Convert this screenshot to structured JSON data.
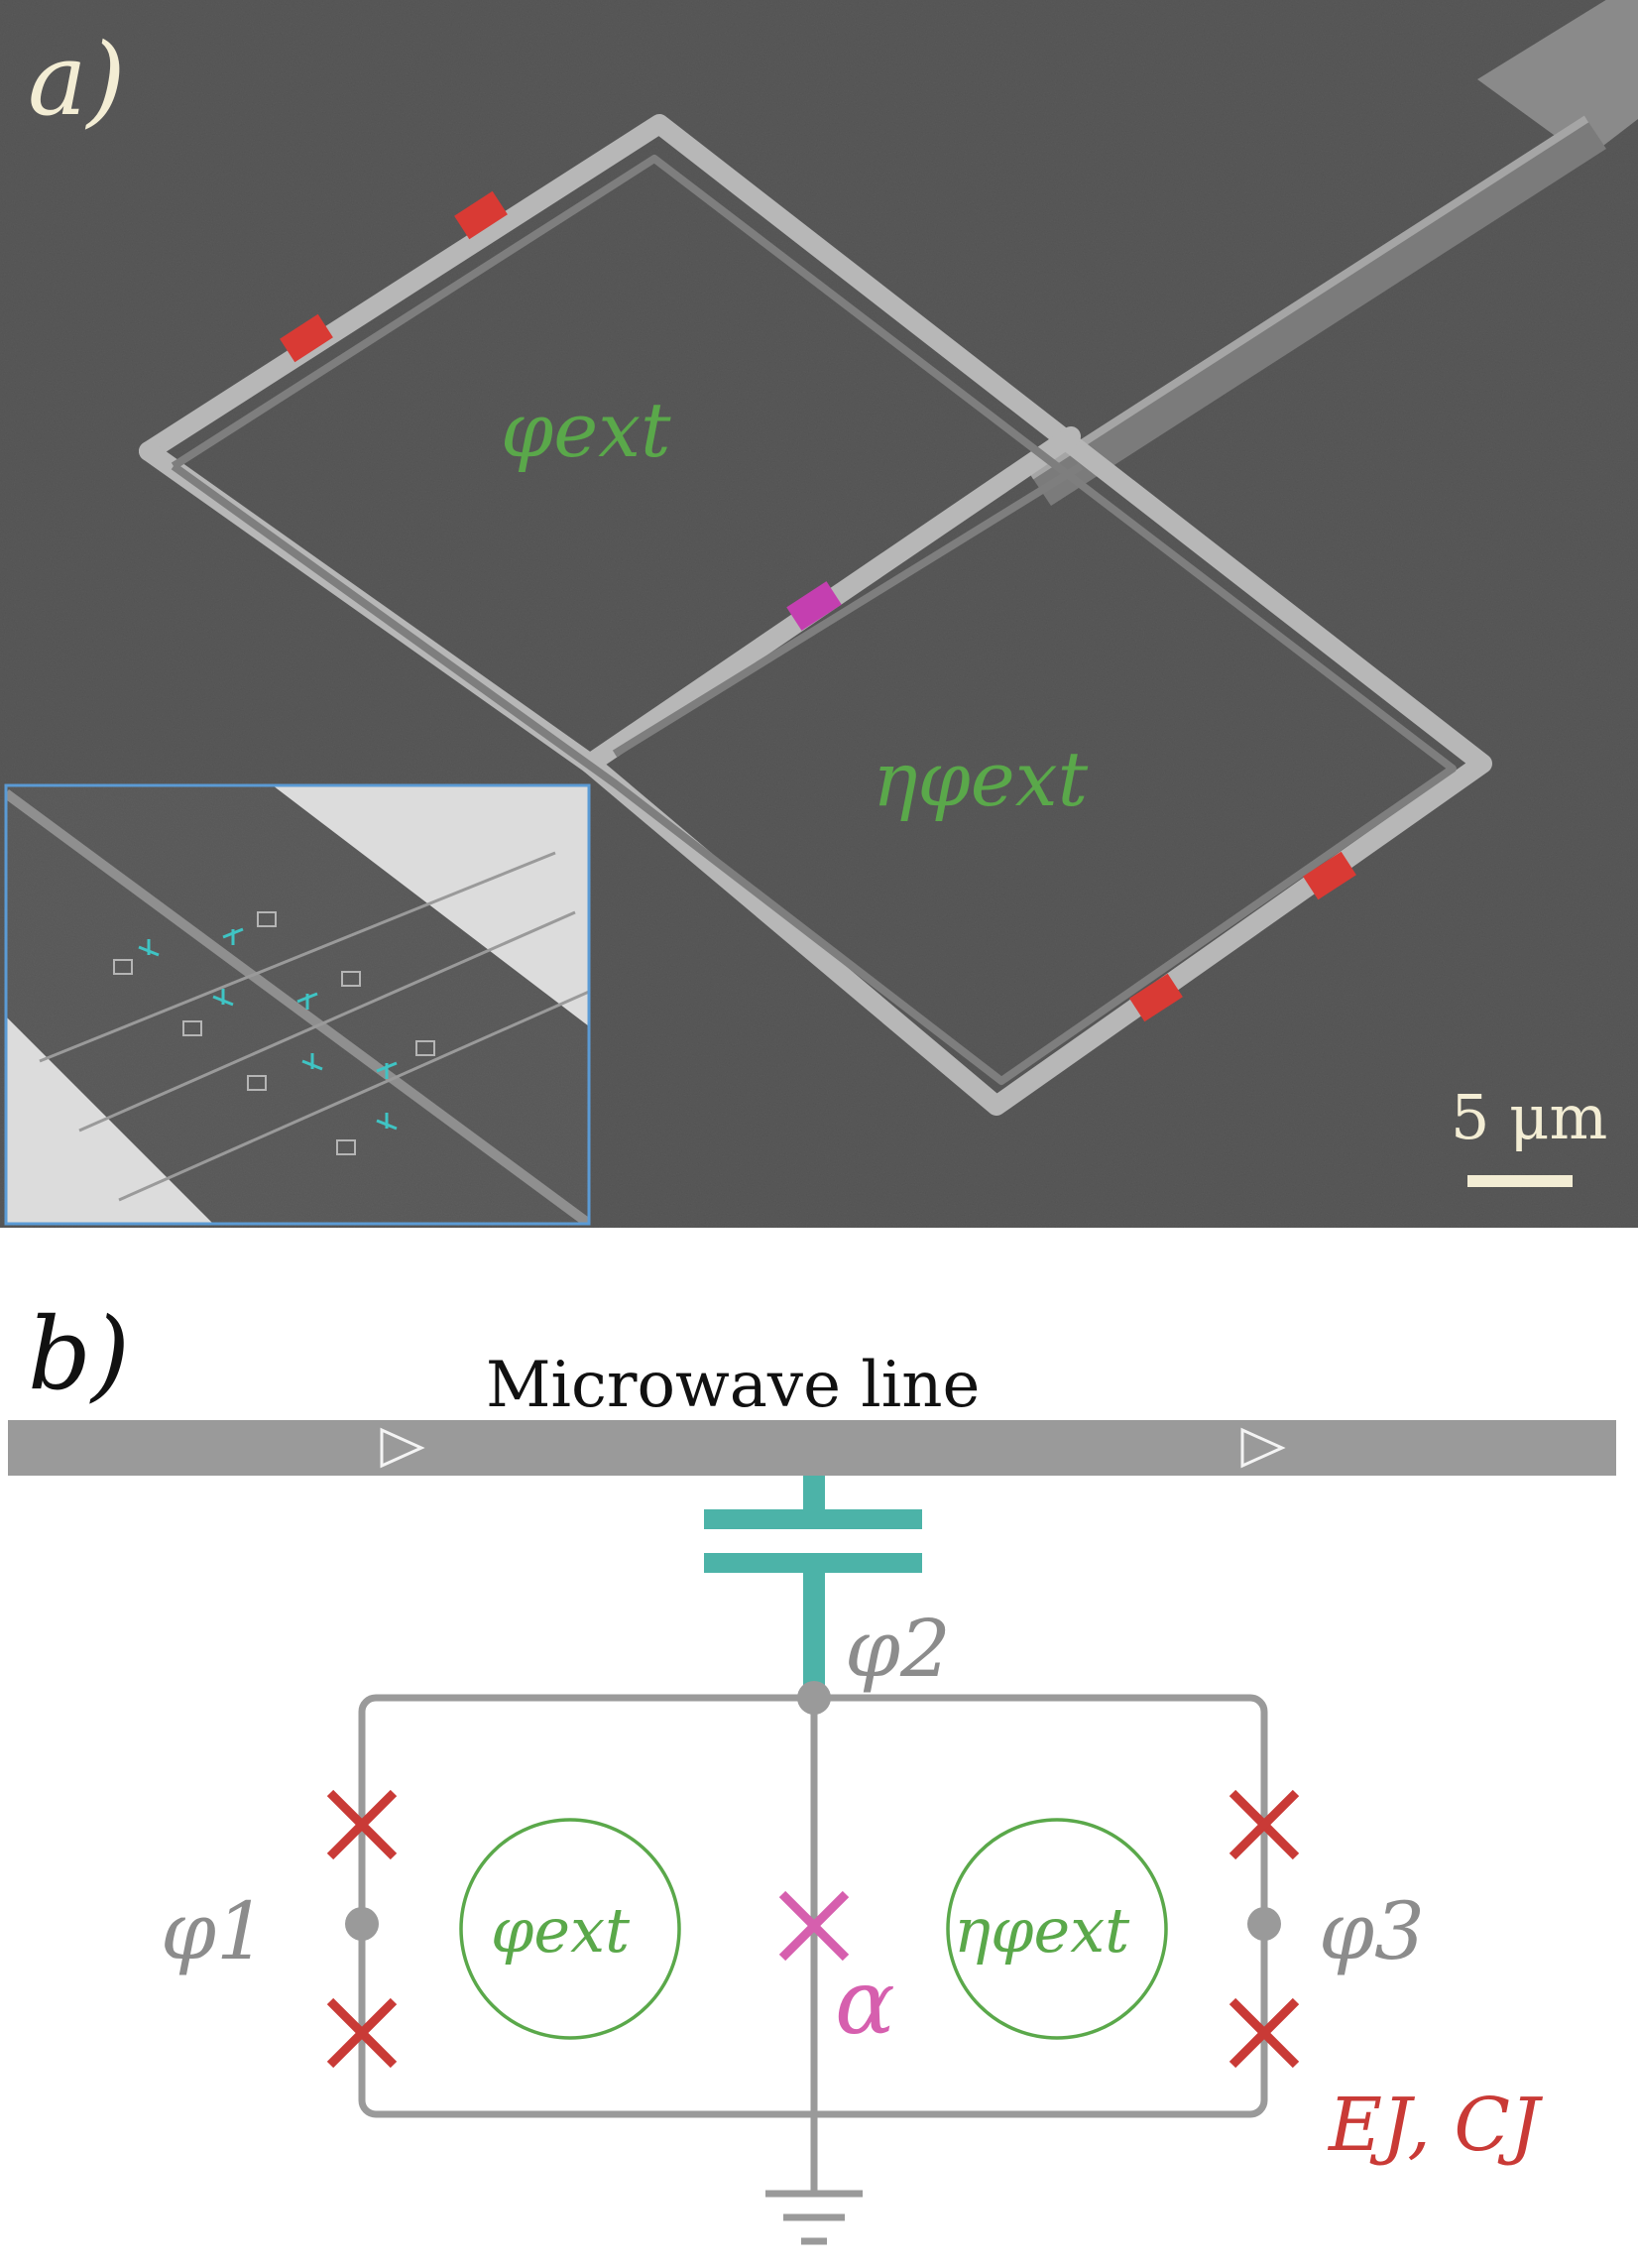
{
  "panel_a": {
    "label": "a)",
    "flux_left": "φext",
    "flux_right": "ηφext",
    "scale_bar": "5 μm"
  },
  "panel_b": {
    "label": "b)",
    "line_label": "Microwave line",
    "node_1": "φ1",
    "node_2": "φ2",
    "node_3": "φ3",
    "flux_left": "φext",
    "flux_right": "ηφext",
    "alpha": "α",
    "junction_params": "EJ, CJ"
  },
  "colors": {
    "sem_background": "#595959",
    "wire_sem": "#b8b8b8",
    "junction_red": "#d93a34",
    "junction_magenta": "#c43fb0",
    "flux_green": "#5aa84a",
    "circuit_gray": "#9a9a9a",
    "capacitor_teal": "#4cb3a8",
    "label_cream": "#f3edd4",
    "junction_label_red": "#c93a36",
    "alpha_pink": "#d65fae",
    "inset_border": "#5b9bd5"
  }
}
